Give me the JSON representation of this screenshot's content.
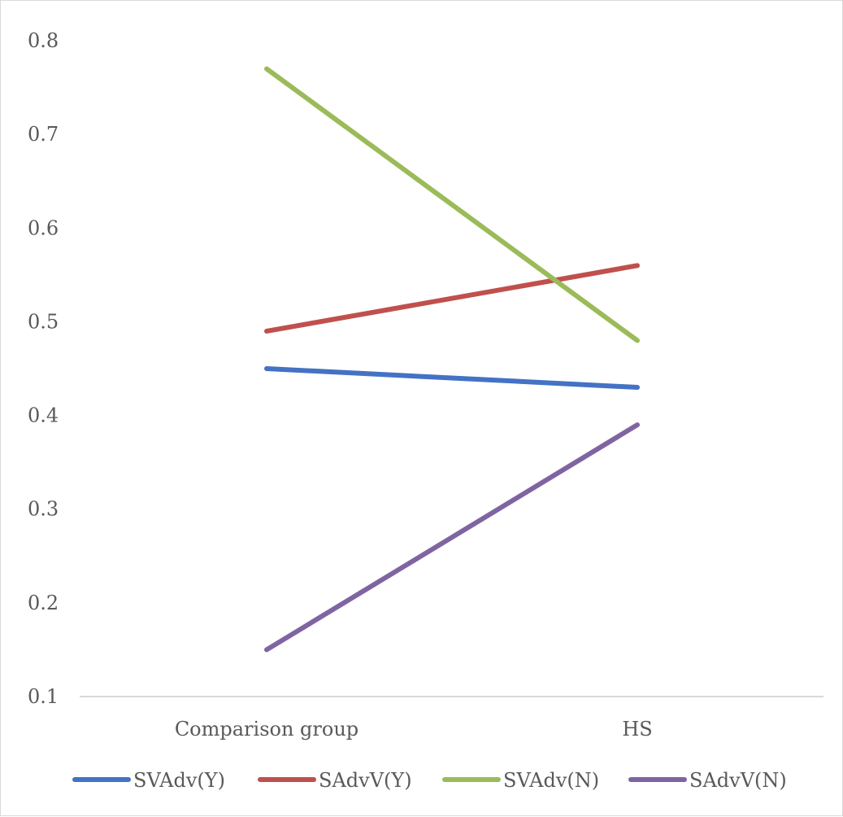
{
  "chart_data": {
    "type": "line",
    "title": "",
    "xlabel": "",
    "ylabel": "",
    "categories": [
      "Comparison group",
      "HS"
    ],
    "ylim": [
      0.1,
      0.8
    ],
    "yticks": [
      "0.1",
      "0.2",
      "0.3",
      "0.4",
      "0.5",
      "0.6",
      "0.7",
      "0.8"
    ],
    "ytick_values": [
      0.1,
      0.2,
      0.3,
      0.4,
      0.5,
      0.6,
      0.7,
      0.8
    ],
    "grid": false,
    "legend_position": "bottom",
    "series": [
      {
        "name": "SVAdv(Y)",
        "values": [
          0.45,
          0.43
        ],
        "color": "#4472c4"
      },
      {
        "name": "SAdvV(Y)",
        "values": [
          0.49,
          0.56
        ],
        "color": "#c0504d"
      },
      {
        "name": "SVAdv(N)",
        "values": [
          0.77,
          0.48
        ],
        "color": "#9bbb59"
      },
      {
        "name": "SAdvV(N)",
        "values": [
          0.15,
          0.39
        ],
        "color": "#8064a2"
      }
    ]
  }
}
